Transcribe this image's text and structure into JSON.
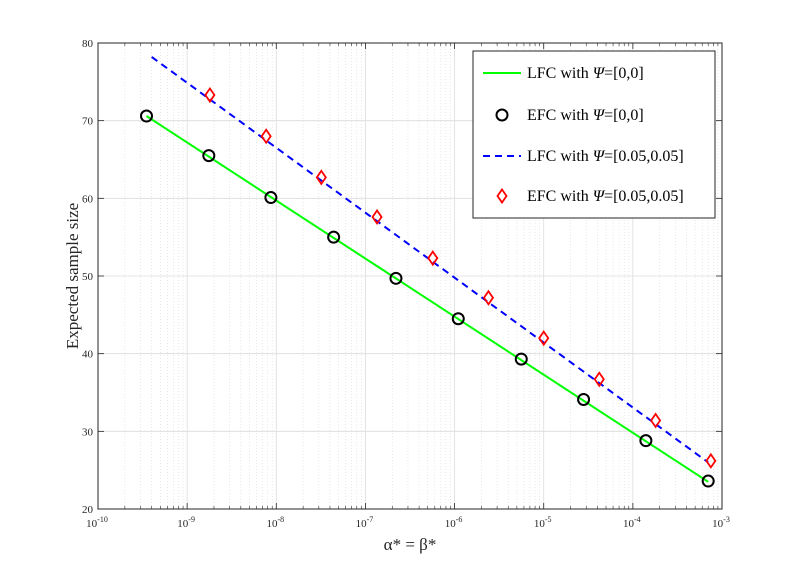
{
  "chart_data": {
    "type": "line",
    "xscale": "log",
    "xlim": [
      1e-10,
      0.001
    ],
    "ylim": [
      20,
      80
    ],
    "yticks": [
      20,
      30,
      40,
      50,
      60,
      70,
      80
    ],
    "ytick_labels": [
      "20",
      "30",
      "40",
      "50",
      "60",
      "70",
      "80"
    ],
    "xtick_exponents": [
      "-10",
      "-9",
      "-8",
      "-7",
      "-6",
      "-5",
      "-4",
      "-3"
    ],
    "xtick_base": "10",
    "grid": true,
    "xlabel": "α* = β*",
    "ylabel": "Expected sample size",
    "legend": {
      "placement": "top-right",
      "entries": [
        {
          "prefix": "LFC with ",
          "psi": "Ψ",
          "suffix": "=[0,0]"
        },
        {
          "prefix": "EFC with ",
          "psi": "Ψ",
          "suffix": "=[0,0]"
        },
        {
          "prefix": "LFC with ",
          "psi": "Ψ",
          "suffix": "=[0.05,0.05]"
        },
        {
          "prefix": "EFC with ",
          "psi": "Ψ",
          "suffix": "=[0.05,0.05]"
        }
      ]
    },
    "series": [
      {
        "style": "line",
        "color": "#00ff00",
        "x": [
          3.5e-10,
          0.0007
        ],
        "y": [
          70.6,
          23.5
        ]
      },
      {
        "style": "circle-markers",
        "color": "#000000",
        "x": [
          3.5e-10,
          1.75e-09,
          8.7e-09,
          4.4e-08,
          2.2e-07,
          1.1e-06,
          5.6e-06,
          2.8e-05,
          0.00014,
          0.0007
        ],
        "y": [
          70.6,
          65.5,
          60.1,
          55.0,
          49.7,
          44.5,
          39.3,
          34.1,
          28.8,
          23.6
        ]
      },
      {
        "style": "dashed-line",
        "color": "#0000ff",
        "x": [
          4e-10,
          0.0007
        ],
        "y": [
          78.2,
          26.0
        ]
      },
      {
        "style": "diamond-markers",
        "color": "#ff0000",
        "x": [
          1.8e-09,
          7.7e-09,
          3.2e-08,
          1.35e-07,
          5.7e-07,
          2.4e-06,
          1e-05,
          4.2e-05,
          0.00018,
          0.00075
        ],
        "y": [
          73.3,
          68.0,
          62.7,
          57.6,
          52.3,
          47.2,
          42.0,
          36.7,
          31.4,
          26.2
        ]
      }
    ]
  }
}
